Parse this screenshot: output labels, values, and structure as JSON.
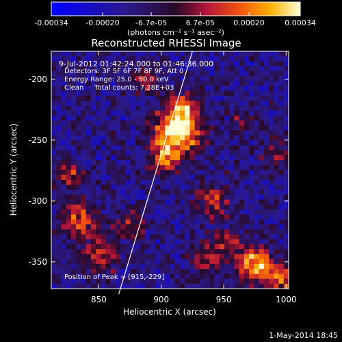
{
  "chart_data": {
    "type": "heatmap",
    "title": "Reconstructed RHESSI Image",
    "xlabel": "Heliocentric X (arcsec)",
    "ylabel": "Heliocentric Y (arcsec)",
    "xlim": [
      812,
      1002
    ],
    "ylim": [
      -372,
      -177
    ],
    "x_ticks": [
      850,
      900,
      950,
      1000
    ],
    "y_ticks": [
      -350,
      -300,
      -250,
      -200
    ],
    "grid": false,
    "colorbar": {
      "position": "top",
      "range": [
        -0.00034,
        0.00034
      ],
      "ticks": [
        -0.00034,
        -0.0002,
        -6.7e-05,
        6.7e-05,
        0.0002,
        0.00034
      ],
      "tick_labels": [
        "-0.00034",
        "-0.00020",
        "-6.7e-05",
        "6.7e-05",
        "0.00020",
        "0.00034"
      ],
      "unit_label": "(photons cm⁻² s⁻¹ asec⁻²)"
    },
    "annotations": [
      "9-Jul-2012 01:42:24.000 to 01:46:36.000",
      "Detectors: 3F 5F 6F 7F 8F 9F, Att 0",
      "Energy Range: 25.0 - 50.0 keV",
      "Clean     Total counts: 7.28E+03"
    ],
    "peak_label": "Position of Peak = [915,-229]",
    "peak": {
      "x": 915,
      "y": -229
    },
    "limb_line": [
      [
        866,
        -372
      ],
      [
        925,
        -177
      ]
    ],
    "sources": [
      {
        "x": 913,
        "y": -242,
        "sigma": 13,
        "amp": 1.0
      },
      {
        "x": 917,
        "y": -222,
        "sigma": 7,
        "amp": 0.55
      },
      {
        "x": 903,
        "y": -265,
        "sigma": 9,
        "amp": 0.5
      },
      {
        "x": 975,
        "y": -352,
        "sigma": 10,
        "amp": 0.8
      },
      {
        "x": 995,
        "y": -365,
        "sigma": 8,
        "amp": 0.55
      },
      {
        "x": 940,
        "y": -300,
        "sigma": 10,
        "amp": 0.45
      },
      {
        "x": 950,
        "y": -335,
        "sigma": 9,
        "amp": 0.4
      },
      {
        "x": 935,
        "y": -350,
        "sigma": 9,
        "amp": 0.35
      },
      {
        "x": 835,
        "y": -315,
        "sigma": 10,
        "amp": 0.55
      },
      {
        "x": 828,
        "y": -280,
        "sigma": 8,
        "amp": 0.45
      },
      {
        "x": 850,
        "y": -345,
        "sigma": 10,
        "amp": 0.5
      },
      {
        "x": 875,
        "y": -320,
        "sigma": 8,
        "amp": 0.4
      },
      {
        "x": 888,
        "y": -200,
        "sigma": 8,
        "amp": 0.35
      },
      {
        "x": 990,
        "y": -260,
        "sigma": 8,
        "amp": 0.3
      },
      {
        "x": 965,
        "y": -235,
        "sigma": 7,
        "amp": 0.25
      }
    ],
    "background_level": -0.35,
    "noise_level": 0.55
  },
  "footer": {
    "date": "1-May-2014 18:45"
  }
}
